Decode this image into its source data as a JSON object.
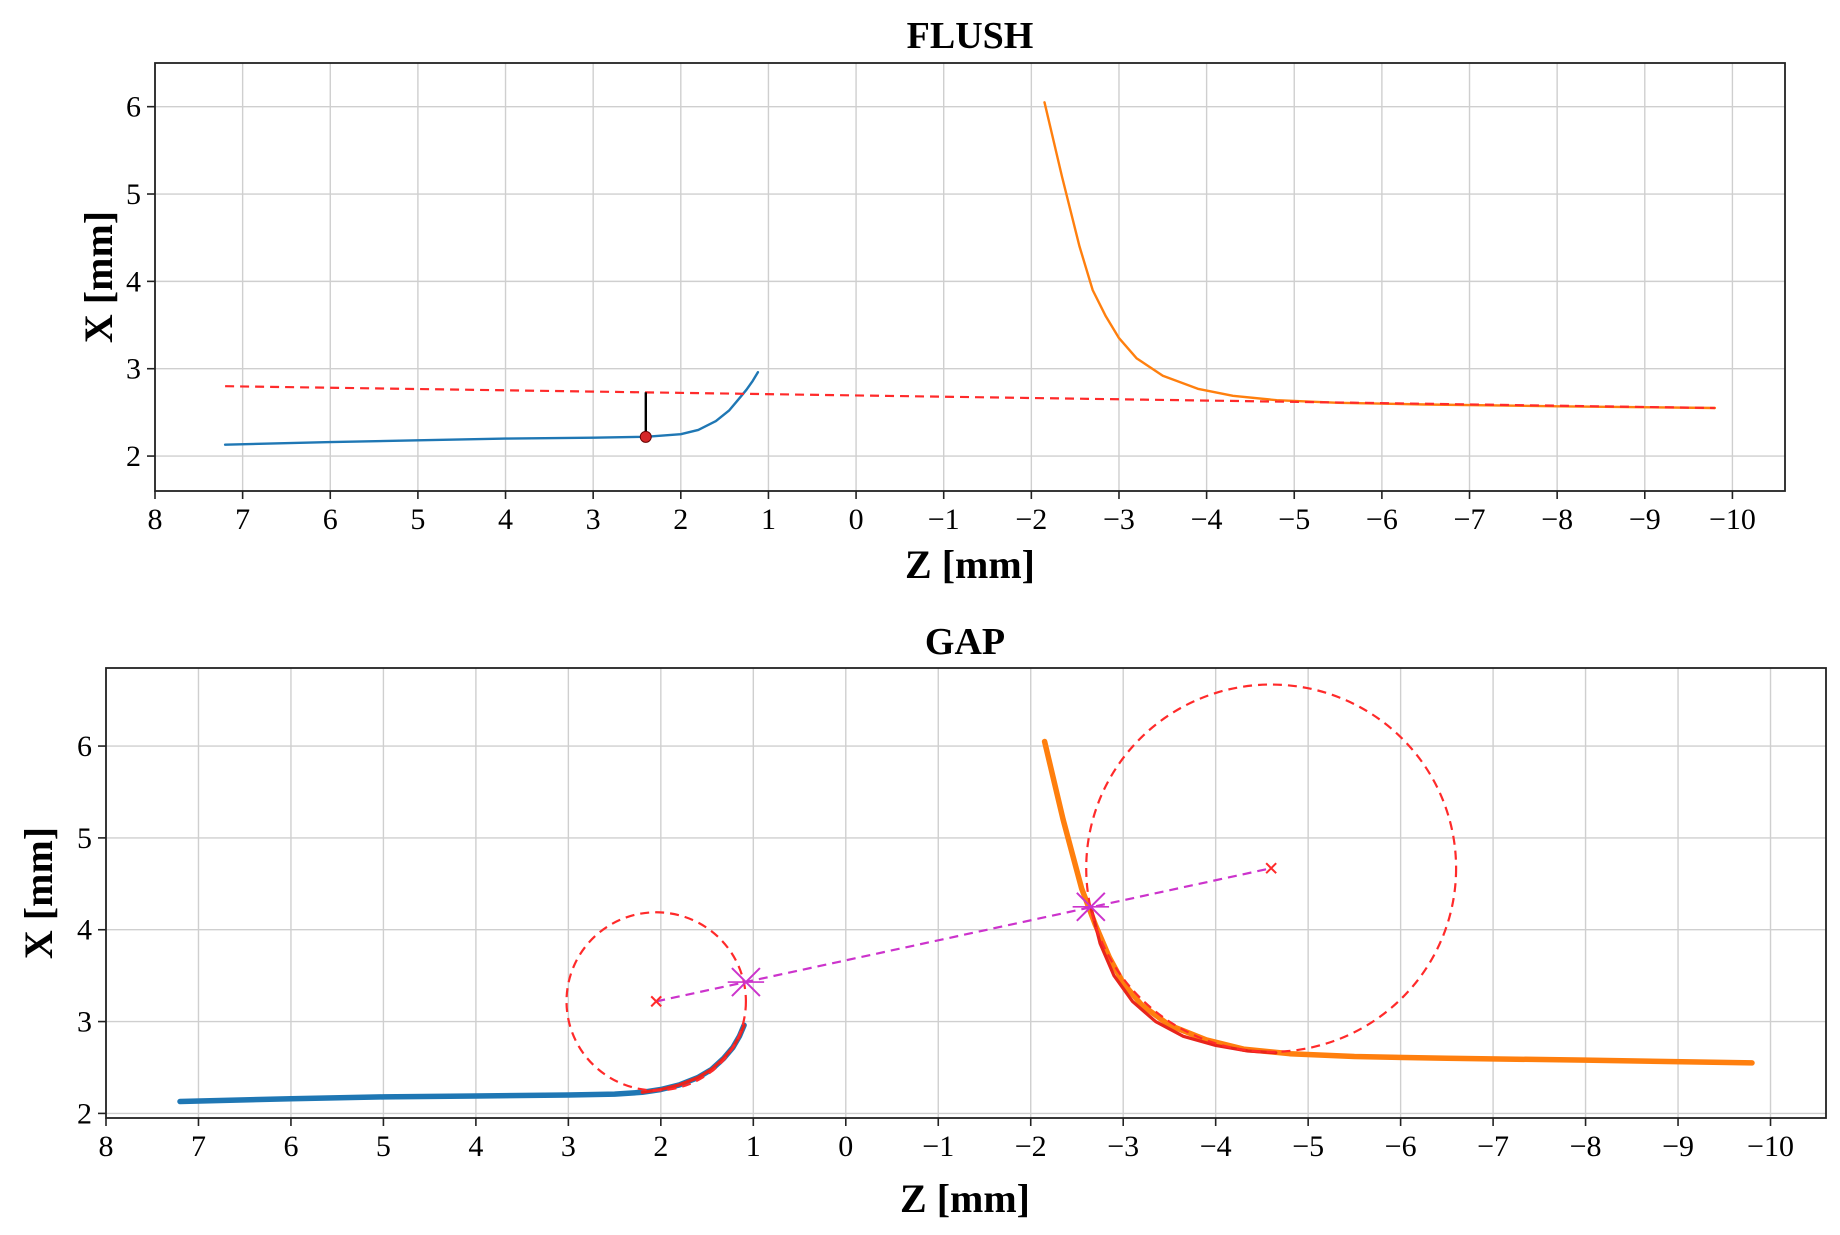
{
  "chart_data": [
    {
      "type": "line",
      "title": "FLUSH",
      "xlabel": "Z [mm]",
      "ylabel": "X [mm]",
      "xlim": [
        8.0,
        -10.6
      ],
      "ylim": [
        6.5,
        1.6
      ],
      "x_ticks": [
        "8",
        "7",
        "6",
        "5",
        "4",
        "3",
        "2",
        "1",
        "0",
        "−1",
        "−2",
        "−3",
        "−4",
        "−5",
        "−6",
        "−7",
        "−8",
        "−9",
        "−10"
      ],
      "y_ticks": [
        "2",
        "3",
        "4",
        "5",
        "6"
      ],
      "grid": true,
      "series": [
        {
          "kind": "line",
          "color": "#1f77b4",
          "x": [
            7.2,
            6.0,
            5.0,
            4.0,
            3.0,
            2.4,
            2.0,
            1.8,
            1.6,
            1.45,
            1.35,
            1.25,
            1.18,
            1.12
          ],
          "y": [
            2.13,
            2.16,
            2.18,
            2.2,
            2.21,
            2.22,
            2.25,
            2.3,
            2.4,
            2.52,
            2.64,
            2.76,
            2.86,
            2.96
          ]
        },
        {
          "kind": "line",
          "color": "#ff7f0e",
          "x": [
            -2.15,
            -2.35,
            -2.55,
            -2.7,
            -2.85,
            -3.0,
            -3.2,
            -3.5,
            -3.9,
            -4.3,
            -4.8,
            -5.5,
            -6.5,
            -8.0,
            -9.8
          ],
          "y": [
            6.05,
            5.2,
            4.4,
            3.9,
            3.6,
            3.35,
            3.12,
            2.92,
            2.77,
            2.69,
            2.64,
            2.61,
            2.59,
            2.57,
            2.55
          ]
        },
        {
          "kind": "dashed",
          "color": "#ff2a2a",
          "x": [
            7.2,
            -9.8
          ],
          "y": [
            2.8,
            2.55
          ]
        },
        {
          "kind": "segment",
          "color": "#000000",
          "x": [
            2.4,
            2.4
          ],
          "y": [
            2.22,
            2.73
          ]
        },
        {
          "kind": "point",
          "color": "#d62728",
          "x": [
            2.4
          ],
          "y": [
            2.22
          ]
        }
      ]
    },
    {
      "type": "line",
      "title": "GAP",
      "xlabel": "Z [mm]",
      "ylabel": "X [mm]",
      "xlim": [
        8.0,
        -10.6
      ],
      "ylim": [
        6.85,
        1.95
      ],
      "x_ticks": [
        "8",
        "7",
        "6",
        "5",
        "4",
        "3",
        "2",
        "1",
        "0",
        "−1",
        "−2",
        "−3",
        "−4",
        "−5",
        "−6",
        "−7",
        "−8",
        "−9",
        "−10"
      ],
      "y_ticks": [
        "2",
        "3",
        "4",
        "5",
        "6"
      ],
      "grid": true,
      "series": [
        {
          "kind": "line-thick",
          "color": "#1f77b4",
          "x": [
            7.2,
            6.0,
            5.0,
            4.0,
            3.0,
            2.5,
            2.2,
            2.0,
            1.8,
            1.6,
            1.45,
            1.32,
            1.22,
            1.15,
            1.1
          ],
          "y": [
            2.13,
            2.16,
            2.18,
            2.19,
            2.2,
            2.21,
            2.23,
            2.26,
            2.31,
            2.39,
            2.48,
            2.6,
            2.72,
            2.84,
            2.96
          ]
        },
        {
          "kind": "line-thick",
          "color": "#ff7f0e",
          "x": [
            -2.15,
            -2.35,
            -2.55,
            -2.7,
            -2.85,
            -3.0,
            -3.2,
            -3.5,
            -3.9,
            -4.3,
            -4.8,
            -5.5,
            -6.5,
            -8.0,
            -9.8
          ],
          "y": [
            6.05,
            5.2,
            4.45,
            4.05,
            3.7,
            3.42,
            3.18,
            2.96,
            2.8,
            2.7,
            2.65,
            2.62,
            2.6,
            2.58,
            2.55
          ]
        },
        {
          "kind": "overlay",
          "color": "#e8241c",
          "x": [
            2.2,
            2.0,
            1.8,
            1.6,
            1.45,
            1.32,
            1.22,
            1.15,
            1.1
          ],
          "y": [
            2.23,
            2.26,
            2.31,
            2.39,
            2.48,
            2.6,
            2.72,
            2.84,
            2.96
          ]
        },
        {
          "kind": "overlay",
          "color": "#e8241c",
          "x": [
            -2.65,
            -2.75,
            -2.9,
            -3.1,
            -3.35,
            -3.65,
            -4.0,
            -4.35,
            -4.65
          ],
          "y": [
            4.25,
            3.85,
            3.5,
            3.22,
            3.0,
            2.84,
            2.74,
            2.68,
            2.66
          ]
        },
        {
          "kind": "circle",
          "color": "#ff2a2a",
          "center": [
            2.05,
            3.22
          ],
          "radius": 0.97
        },
        {
          "kind": "circle",
          "color": "#ff2a2a",
          "center": [
            -4.6,
            4.67
          ],
          "radius": 2.0
        },
        {
          "kind": "dashed",
          "color": "#cc33cc",
          "x": [
            2.05,
            -4.6
          ],
          "y": [
            3.22,
            4.67
          ]
        },
        {
          "kind": "marker-small",
          "color": "#ff2a2a",
          "x": [
            2.05,
            -4.6
          ],
          "y": [
            3.22,
            4.67
          ]
        },
        {
          "kind": "marker-large",
          "color": "#cc33cc",
          "x": [
            1.08,
            -2.65
          ],
          "y": [
            3.43,
            4.25
          ]
        }
      ]
    }
  ]
}
